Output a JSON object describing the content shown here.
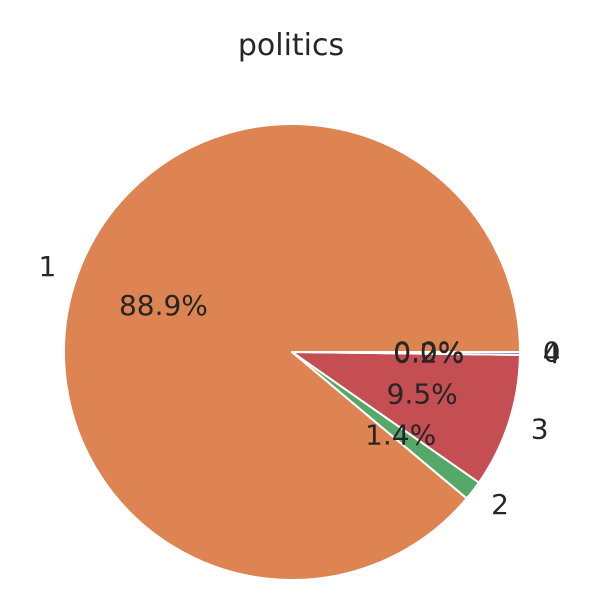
{
  "chart_data": {
    "type": "pie",
    "title": "politics",
    "slices": [
      {
        "label": "0",
        "value": 0.0,
        "percent_label": "0.0%",
        "color": "#4c72b0"
      },
      {
        "label": "1",
        "value": 88.9,
        "percent_label": "88.9%",
        "color": "#dd8452"
      },
      {
        "label": "2",
        "value": 1.4,
        "percent_label": "1.4%",
        "color": "#55a868"
      },
      {
        "label": "3",
        "value": 9.5,
        "percent_label": "9.5%",
        "color": "#c44e52"
      },
      {
        "label": "4",
        "value": 0.2,
        "percent_label": "0.2%",
        "color": "#8172b3"
      }
    ],
    "start_angle_deg": 0,
    "direction": "counterclockwise",
    "legend": "none"
  }
}
